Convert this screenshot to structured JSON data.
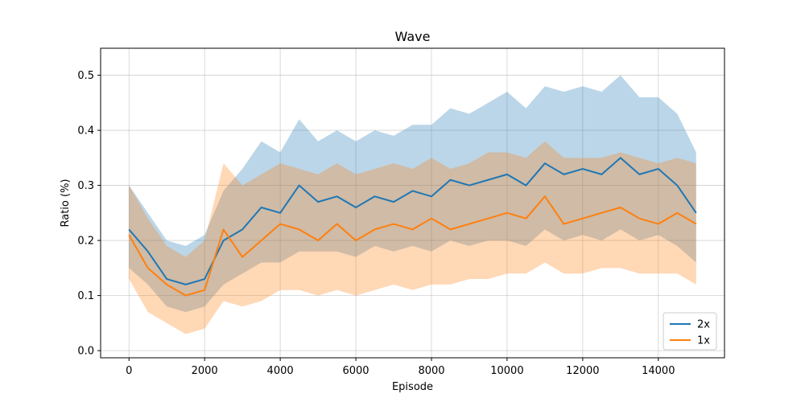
{
  "chart_data": {
    "type": "line",
    "title": "Wave",
    "xlabel": "Episode",
    "ylabel": "Ratio (%)",
    "xlim": [
      -750,
      15750
    ],
    "ylim": [
      -0.013,
      0.549
    ],
    "xticks": [
      0,
      2000,
      4000,
      6000,
      8000,
      10000,
      12000,
      14000
    ],
    "xtick_labels": [
      "0",
      "2000",
      "4000",
      "6000",
      "8000",
      "10000",
      "12000",
      "14000"
    ],
    "yticks": [
      0.0,
      0.1,
      0.2,
      0.3,
      0.4,
      0.5
    ],
    "ytick_labels": [
      "0.0",
      "0.1",
      "0.2",
      "0.3",
      "0.4",
      "0.5"
    ],
    "grid": true,
    "legend_position": "lower-right",
    "series": [
      {
        "name": "2x",
        "color": "#1f77b4",
        "x": [
          0,
          500,
          1000,
          1500,
          2000,
          2500,
          3000,
          3500,
          4000,
          4500,
          5000,
          5500,
          6000,
          6500,
          7000,
          7500,
          8000,
          8500,
          9000,
          9500,
          10000,
          10500,
          11000,
          11500,
          12000,
          12500,
          13000,
          13500,
          14000,
          14500,
          15000
        ],
        "mean": [
          0.22,
          0.18,
          0.13,
          0.12,
          0.13,
          0.2,
          0.22,
          0.26,
          0.25,
          0.3,
          0.27,
          0.28,
          0.26,
          0.28,
          0.27,
          0.29,
          0.28,
          0.31,
          0.3,
          0.31,
          0.32,
          0.3,
          0.34,
          0.32,
          0.33,
          0.32,
          0.35,
          0.32,
          0.33,
          0.3,
          0.25
        ],
        "upper": [
          0.3,
          0.25,
          0.2,
          0.19,
          0.21,
          0.29,
          0.33,
          0.38,
          0.36,
          0.42,
          0.38,
          0.4,
          0.38,
          0.4,
          0.39,
          0.41,
          0.41,
          0.44,
          0.43,
          0.45,
          0.47,
          0.44,
          0.48,
          0.47,
          0.48,
          0.47,
          0.5,
          0.46,
          0.46,
          0.43,
          0.36
        ],
        "lower": [
          0.15,
          0.12,
          0.08,
          0.07,
          0.08,
          0.12,
          0.14,
          0.16,
          0.16,
          0.18,
          0.18,
          0.18,
          0.17,
          0.19,
          0.18,
          0.19,
          0.18,
          0.2,
          0.19,
          0.2,
          0.2,
          0.19,
          0.22,
          0.2,
          0.21,
          0.2,
          0.22,
          0.2,
          0.21,
          0.19,
          0.16
        ]
      },
      {
        "name": "1x",
        "color": "#ff7f0e",
        "x": [
          0,
          500,
          1000,
          1500,
          2000,
          2500,
          3000,
          3500,
          4000,
          4500,
          5000,
          5500,
          6000,
          6500,
          7000,
          7500,
          8000,
          8500,
          9000,
          9500,
          10000,
          10500,
          11000,
          11500,
          12000,
          12500,
          13000,
          13500,
          14000,
          14500,
          15000
        ],
        "mean": [
          0.21,
          0.15,
          0.12,
          0.1,
          0.11,
          0.22,
          0.17,
          0.2,
          0.23,
          0.22,
          0.2,
          0.23,
          0.2,
          0.22,
          0.23,
          0.22,
          0.24,
          0.22,
          0.23,
          0.24,
          0.25,
          0.24,
          0.28,
          0.23,
          0.24,
          0.25,
          0.26,
          0.24,
          0.23,
          0.25,
          0.23
        ],
        "upper": [
          0.3,
          0.24,
          0.19,
          0.17,
          0.2,
          0.34,
          0.3,
          0.32,
          0.34,
          0.33,
          0.32,
          0.34,
          0.32,
          0.33,
          0.34,
          0.33,
          0.35,
          0.33,
          0.34,
          0.36,
          0.36,
          0.35,
          0.38,
          0.35,
          0.35,
          0.35,
          0.36,
          0.35,
          0.34,
          0.35,
          0.34
        ],
        "lower": [
          0.13,
          0.07,
          0.05,
          0.03,
          0.04,
          0.09,
          0.08,
          0.09,
          0.11,
          0.11,
          0.1,
          0.11,
          0.1,
          0.11,
          0.12,
          0.11,
          0.12,
          0.12,
          0.13,
          0.13,
          0.14,
          0.14,
          0.16,
          0.14,
          0.14,
          0.15,
          0.15,
          0.14,
          0.14,
          0.14,
          0.12
        ]
      }
    ]
  }
}
